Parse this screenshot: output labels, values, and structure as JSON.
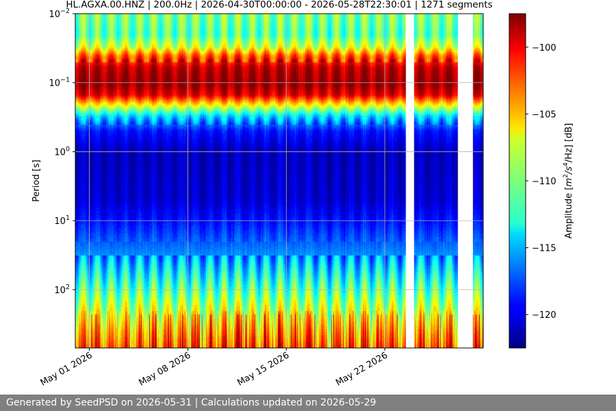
{
  "chart_data": {
    "type": "heatmap",
    "title": "HL.AGXA.00.HNZ | 200.0Hz | 2026-04-30T00:00:00 - 2026-05-28T22:30:01 | 1271 segments",
    "xlabel": "",
    "ylabel": "Period [s]",
    "colorbar_label": "Amplitude [$m^2/s^4/Hz$] [dB]",
    "colorbar_label_parts": {
      "pre": "Amplitude [",
      "m": "m",
      "exp1": "2",
      "mid": "/s",
      "exp2": "4",
      "post": "/Hz] [dB]"
    },
    "colormap": "jet",
    "y_scale": "log",
    "y_inverted": true,
    "y_range_s": [
      0.01,
      700
    ],
    "y_ticks": [
      {
        "base": "10",
        "exp": "−2",
        "value": 0.01
      },
      {
        "base": "10",
        "exp": "−1",
        "value": 0.1
      },
      {
        "base": "10",
        "exp": "0",
        "value": 1
      },
      {
        "base": "10",
        "exp": "1",
        "value": 10
      },
      {
        "base": "10",
        "exp": "2",
        "value": 100
      }
    ],
    "x_range": [
      "2026-04-30",
      "2026-05-29"
    ],
    "x_ticks": [
      {
        "label": "May 01 2026",
        "date": "2026-05-01"
      },
      {
        "label": "May 08 2026",
        "date": "2026-05-08"
      },
      {
        "label": "May 15 2026",
        "date": "2026-05-15"
      },
      {
        "label": "May 22 2026",
        "date": "2026-05-22"
      }
    ],
    "color_range_db": [
      -122.5,
      -97.5
    ],
    "colorbar_ticks": [
      {
        "label": "−100",
        "value": -100
      },
      {
        "label": "−105",
        "value": -105
      },
      {
        "label": "−110",
        "value": -110
      },
      {
        "label": "−115",
        "value": -115
      },
      {
        "label": "−120",
        "value": -120
      }
    ],
    "grid": true,
    "data_gaps": [
      {
        "start": "2026-05-23T12:00:00",
        "end": "2026-05-24T02:00:00"
      },
      {
        "start": "2026-05-27T04:00:00",
        "end": "2026-05-28T06:00:00"
      }
    ],
    "spectral_profile_db": [
      {
        "period_s": 0.01,
        "db": -110
      },
      {
        "period_s": 0.02,
        "db": -111
      },
      {
        "period_s": 0.03,
        "db": -108
      },
      {
        "period_s": 0.04,
        "db": -103
      },
      {
        "period_s": 0.06,
        "db": -99
      },
      {
        "period_s": 0.1,
        "db": -98
      },
      {
        "period_s": 0.15,
        "db": -100
      },
      {
        "period_s": 0.2,
        "db": -106
      },
      {
        "period_s": 0.3,
        "db": -114
      },
      {
        "period_s": 0.5,
        "db": -119
      },
      {
        "period_s": 1,
        "db": -121
      },
      {
        "period_s": 5,
        "db": -120.5
      },
      {
        "period_s": 10,
        "db": -119
      },
      {
        "period_s": 30,
        "db": -116
      },
      {
        "period_s": 100,
        "db": -111
      },
      {
        "period_s": 200,
        "db": -108
      },
      {
        "period_s": 400,
        "db": -105
      },
      {
        "period_s": 700,
        "db": -103
      }
    ]
  },
  "footer": {
    "text": "Generated by SeedPSD on 2026-05-31 | Calculations updated on 2026-05-29"
  }
}
